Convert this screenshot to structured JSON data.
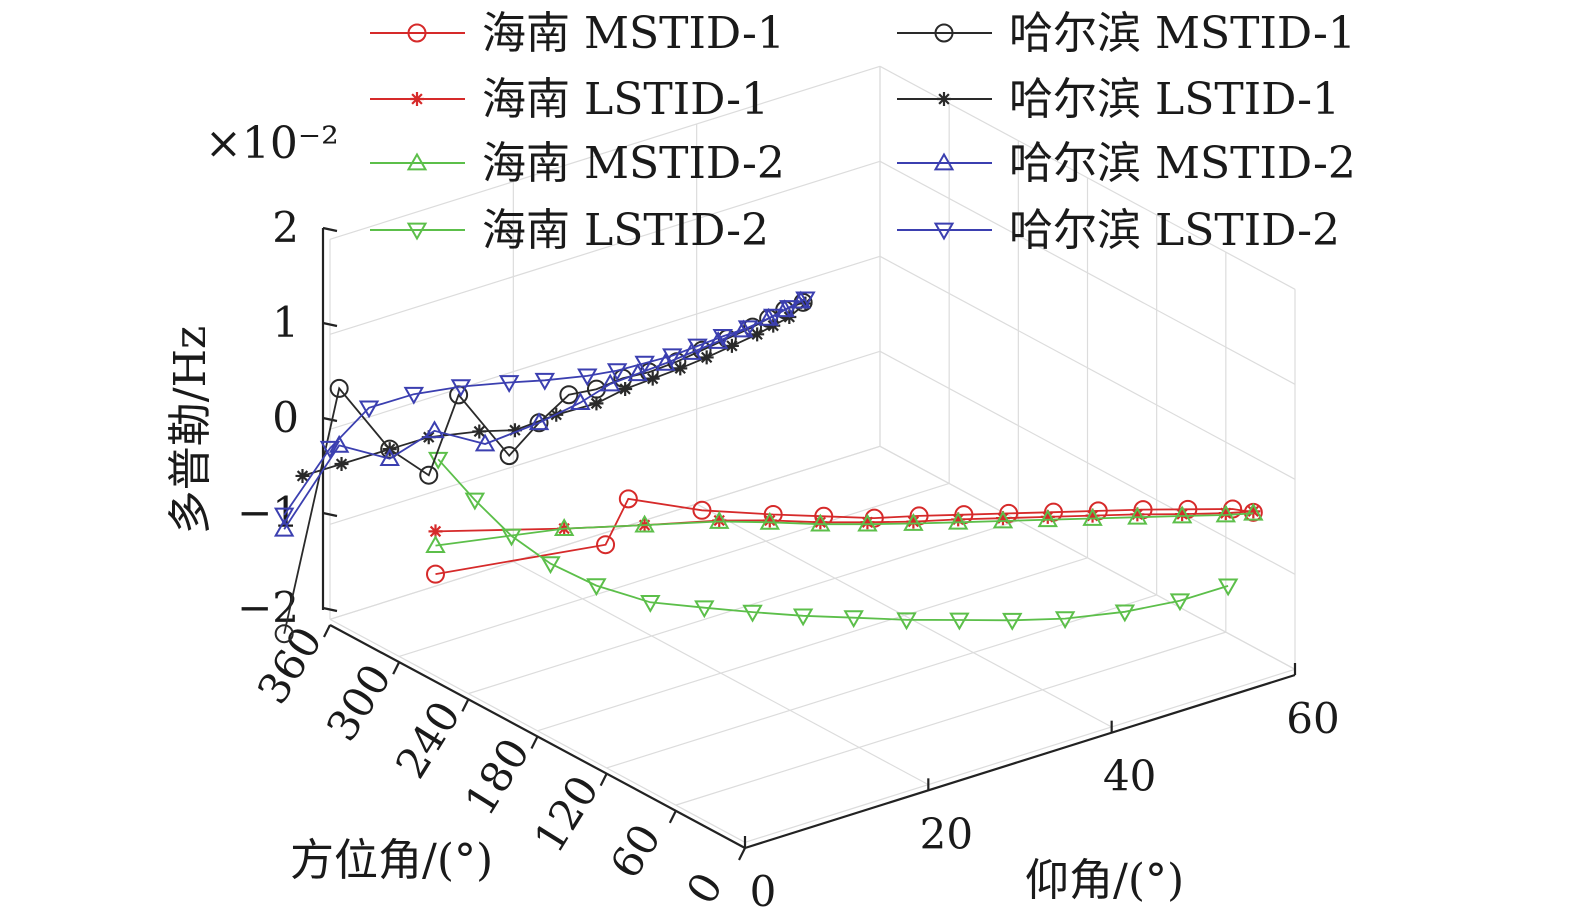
{
  "chart_data": {
    "type": "line",
    "title": "",
    "xlabel": "方位角/(°)",
    "ylabel": "仰角/(°)",
    "zlabel": "多普勒/Hz",
    "z_exponent_label": "×10⁻²",
    "x_ticks": [
      "0",
      "60",
      "120",
      "180",
      "240",
      "300",
      "360"
    ],
    "y_ticks": [
      "0",
      "20",
      "40",
      "60"
    ],
    "z_ticks": [
      "−2",
      "−1",
      "0",
      "1",
      "2"
    ],
    "xlim": [
      0,
      360
    ],
    "ylim": [
      0,
      60
    ],
    "zlim": [
      -2,
      2
    ],
    "grid": true,
    "legend_position": "top",
    "series": [
      {
        "name": "海南 MSTID-1",
        "color": "#d62a2a",
        "marker": "circle",
        "points": [
          [
            348,
            10,
            -1.75
          ],
          [
            280,
            20,
            -1.3
          ],
          [
            300,
            25,
            -1.1
          ],
          [
            260,
            28,
            -1.05
          ],
          [
            230,
            32,
            -1.02
          ],
          [
            210,
            35,
            -1.0
          ],
          [
            190,
            38,
            -0.98
          ],
          [
            175,
            41,
            -0.95
          ],
          [
            160,
            44,
            -0.93
          ],
          [
            145,
            47,
            -0.91
          ],
          [
            130,
            50,
            -0.89
          ],
          [
            115,
            53,
            -0.87
          ],
          [
            100,
            56,
            -0.85
          ],
          [
            85,
            59,
            -0.84
          ],
          [
            70,
            62,
            -0.83
          ],
          [
            60,
            63,
            -0.83
          ]
        ]
      },
      {
        "name": "海南 LSTID-1",
        "color": "#d62a2a",
        "marker": "star",
        "points": [
          [
            348,
            10,
            -1.3
          ],
          [
            300,
            18,
            -1.2
          ],
          [
            270,
            23,
            -1.12
          ],
          [
            245,
            28,
            -1.06
          ],
          [
            225,
            31,
            -1.02
          ],
          [
            205,
            34,
            -1.0
          ],
          [
            188,
            37,
            -0.98
          ],
          [
            172,
            40,
            -0.96
          ],
          [
            157,
            43,
            -0.93
          ],
          [
            142,
            46,
            -0.91
          ],
          [
            127,
            49,
            -0.89
          ],
          [
            112,
            52,
            -0.87
          ],
          [
            97,
            55,
            -0.85
          ],
          [
            82,
            58,
            -0.84
          ],
          [
            68,
            61,
            -0.83
          ],
          [
            60,
            63,
            -0.82
          ]
        ]
      },
      {
        "name": "海南 MSTID-2",
        "color": "#5cbf4a",
        "marker": "triangle-up",
        "points": [
          [
            348,
            10,
            -1.45
          ],
          [
            300,
            18,
            -1.2
          ],
          [
            270,
            23,
            -1.12
          ],
          [
            245,
            28,
            -1.07
          ],
          [
            225,
            31,
            -1.04
          ],
          [
            205,
            34,
            -1.02
          ],
          [
            188,
            37,
            -1.0
          ],
          [
            172,
            40,
            -0.98
          ],
          [
            157,
            43,
            -0.96
          ],
          [
            142,
            46,
            -0.94
          ],
          [
            127,
            49,
            -0.92
          ],
          [
            112,
            52,
            -0.9
          ],
          [
            97,
            55,
            -0.88
          ],
          [
            82,
            58,
            -0.86
          ],
          [
            68,
            61,
            -0.85
          ],
          [
            60,
            63,
            -0.84
          ]
        ]
      },
      {
        "name": "海南 LSTID-2",
        "color": "#5cbf4a",
        "marker": "triangle-down",
        "points": [
          [
            290,
            3,
            0.05
          ],
          [
            290,
            7,
            -0.5
          ],
          [
            290,
            11,
            -1.0
          ],
          [
            288,
            15,
            -1.4
          ],
          [
            280,
            19,
            -1.7
          ],
          [
            265,
            23,
            -1.9
          ],
          [
            250,
            27,
            -1.98
          ],
          [
            232,
            30,
            -2.0
          ],
          [
            212,
            33,
            -2.0
          ],
          [
            192,
            36,
            -1.98
          ],
          [
            170,
            39,
            -1.95
          ],
          [
            148,
            42,
            -1.9
          ],
          [
            126,
            45,
            -1.85
          ],
          [
            104,
            48,
            -1.78
          ],
          [
            84,
            52,
            -1.7
          ],
          [
            68,
            56,
            -1.6
          ],
          [
            58,
            60,
            -1.5
          ]
        ]
      },
      {
        "name": "哈尔滨 MSTID-1",
        "color": "#2a2a2a",
        "marker": "circle",
        "points": [
          [
            360,
            -5,
            -2.0
          ],
          [
            360,
            1,
            0.4
          ],
          [
            340,
            4,
            -0.2
          ],
          [
            330,
            7,
            -0.5
          ],
          [
            320,
            9,
            0.35
          ],
          [
            300,
            12,
            -0.25
          ],
          [
            290,
            14,
            0.1
          ],
          [
            280,
            16,
            0.4
          ],
          [
            272,
            18,
            0.45
          ],
          [
            265,
            20,
            0.55
          ],
          [
            258,
            22,
            0.6
          ],
          [
            250,
            24,
            0.7
          ],
          [
            244,
            26,
            0.8
          ],
          [
            238,
            28,
            0.9
          ],
          [
            232,
            30,
            1.0
          ],
          [
            226,
            31,
            1.1
          ],
          [
            220,
            32,
            1.2
          ],
          [
            212,
            33,
            1.3
          ]
        ]
      },
      {
        "name": "哈尔滨 LSTID-1",
        "color": "#2a2a2a",
        "marker": "star",
        "points": [
          [
            360,
            -3,
            -0.4
          ],
          [
            350,
            0,
            -0.3
          ],
          [
            340,
            4,
            -0.2
          ],
          [
            330,
            7,
            -0.1
          ],
          [
            310,
            10,
            0.0
          ],
          [
            295,
            12,
            0.05
          ],
          [
            283,
            15,
            0.2
          ],
          [
            272,
            18,
            0.3
          ],
          [
            263,
            20,
            0.45
          ],
          [
            255,
            22,
            0.55
          ],
          [
            247,
            24,
            0.65
          ],
          [
            240,
            26,
            0.75
          ],
          [
            234,
            28,
            0.85
          ],
          [
            228,
            30,
            0.95
          ],
          [
            222,
            31,
            1.05
          ],
          [
            216,
            32,
            1.15
          ],
          [
            210,
            33,
            1.3
          ]
        ]
      },
      {
        "name": "哈尔滨 MSTID-2",
        "color": "#3b3fb0",
        "marker": "triangle-up",
        "points": [
          [
            360,
            -5,
            -0.9
          ],
          [
            360,
            1,
            -0.2
          ],
          [
            340,
            4,
            -0.3
          ],
          [
            325,
            7,
            0.0
          ],
          [
            305,
            10,
            -0.1
          ],
          [
            290,
            14,
            0.1
          ],
          [
            278,
            17,
            0.3
          ],
          [
            268,
            19,
            0.5
          ],
          [
            260,
            21,
            0.6
          ],
          [
            252,
            23,
            0.7
          ],
          [
            245,
            25,
            0.8
          ],
          [
            238,
            27,
            0.9
          ],
          [
            232,
            29,
            1.0
          ],
          [
            226,
            31,
            1.1
          ],
          [
            220,
            32,
            1.2
          ],
          [
            214,
            33,
            1.3
          ]
        ]
      },
      {
        "name": "哈尔滨 LSTID-2",
        "color": "#3b3fb0",
        "marker": "triangle-down",
        "points": [
          [
            360,
            -5,
            -0.75
          ],
          [
            360,
            0,
            -0.2
          ],
          [
            350,
            3,
            0.2
          ],
          [
            335,
            6,
            0.35
          ],
          [
            318,
            9,
            0.45
          ],
          [
            300,
            12,
            0.52
          ],
          [
            285,
            14,
            0.58
          ],
          [
            272,
            17,
            0.62
          ],
          [
            262,
            19,
            0.68
          ],
          [
            254,
            21,
            0.75
          ],
          [
            246,
            23,
            0.82
          ],
          [
            240,
            25,
            0.9
          ],
          [
            234,
            27,
            0.98
          ],
          [
            228,
            29,
            1.05
          ],
          [
            222,
            31,
            1.15
          ],
          [
            216,
            32,
            1.25
          ],
          [
            210,
            33,
            1.35
          ]
        ]
      }
    ]
  }
}
